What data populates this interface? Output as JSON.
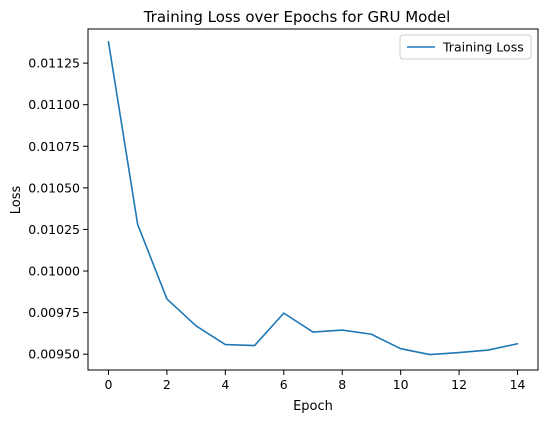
{
  "chart_data": {
    "type": "line",
    "title": "Training Loss over Epochs for GRU Model",
    "xlabel": "Epoch",
    "ylabel": "Loss",
    "x": [
      0,
      1,
      2,
      3,
      4,
      5,
      6,
      7,
      8,
      9,
      10,
      11,
      12,
      13,
      14
    ],
    "series": [
      {
        "name": "Training Loss",
        "color": "#1f77b4",
        "values": [
          0.011378,
          0.01028,
          0.009832,
          0.00967,
          0.009558,
          0.009552,
          0.009747,
          0.009633,
          0.009645,
          0.00962,
          0.009533,
          0.009498,
          0.00951,
          0.009525,
          0.009563
        ]
      }
    ],
    "xlim": [
      -0.7,
      14.7
    ],
    "ylim": [
      0.009405,
      0.011455
    ],
    "xticks": [
      0,
      2,
      4,
      6,
      8,
      10,
      12,
      14
    ],
    "xtick_labels": [
      "0",
      "2",
      "4",
      "6",
      "8",
      "10",
      "12",
      "14"
    ],
    "yticks": [
      0.0095,
      0.00975,
      0.01,
      0.01025,
      0.0105,
      0.01075,
      0.011,
      0.01125
    ],
    "ytick_labels": [
      "0.00950",
      "0.00975",
      "0.01000",
      "0.01025",
      "0.01050",
      "0.01075",
      "0.01100",
      "0.01125"
    ],
    "grid": false,
    "legend": "top-right"
  }
}
